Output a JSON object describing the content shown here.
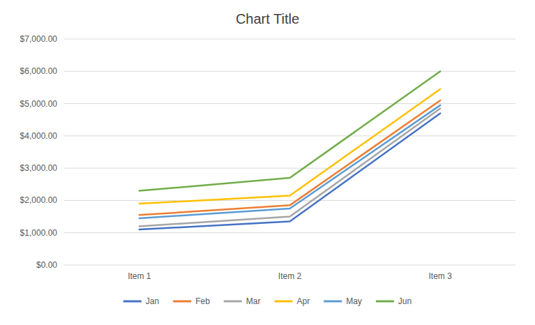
{
  "chart_data": {
    "type": "line",
    "title": "Chart Title",
    "categories": [
      "Item 1",
      "Item 2",
      "Item 3"
    ],
    "series": [
      {
        "name": "Jan",
        "color": "#4472C4",
        "values": [
          1100,
          1350,
          4700
        ]
      },
      {
        "name": "Feb",
        "color": "#ED7D31",
        "values": [
          1550,
          1850,
          5100
        ]
      },
      {
        "name": "Mar",
        "color": "#A5A5A5",
        "values": [
          1200,
          1500,
          4850
        ]
      },
      {
        "name": "Apr",
        "color": "#FFC000",
        "values": [
          1900,
          2150,
          5450
        ]
      },
      {
        "name": "May",
        "color": "#5B9BD5",
        "values": [
          1450,
          1750,
          4950
        ]
      },
      {
        "name": "Jun",
        "color": "#70AD47",
        "values": [
          2300,
          2700,
          6000
        ]
      }
    ],
    "ylim": [
      0,
      7000
    ],
    "yticks": [
      {
        "value": 0,
        "label": "$0.00"
      },
      {
        "value": 1000,
        "label": "$1,000.00"
      },
      {
        "value": 2000,
        "label": "$2,000.00"
      },
      {
        "value": 3000,
        "label": "$3,000.00"
      },
      {
        "value": 4000,
        "label": "$4,000.00"
      },
      {
        "value": 5000,
        "label": "$5,000.00"
      },
      {
        "value": 6000,
        "label": "$6,000.00"
      },
      {
        "value": 7000,
        "label": "$7,000.00"
      }
    ],
    "grid": true,
    "legend": "bottom"
  }
}
